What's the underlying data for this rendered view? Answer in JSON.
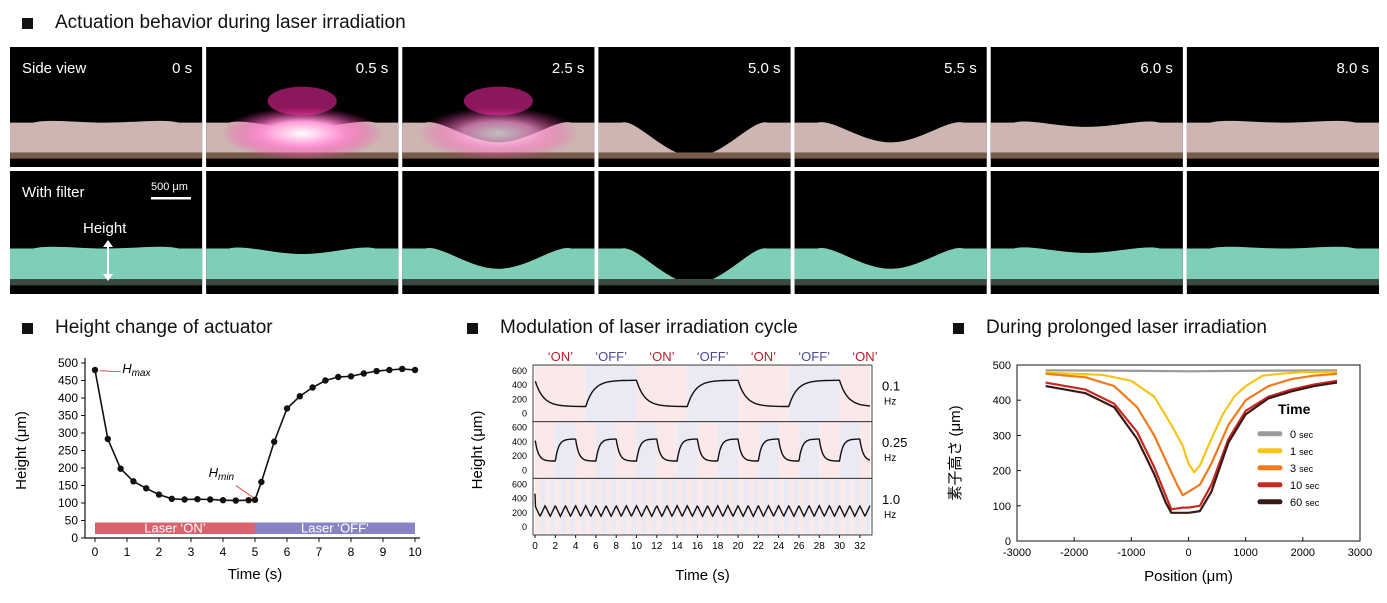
{
  "sections": {
    "top": "Actuation behavior during laser irradiation",
    "left": "Height change of actuator",
    "middle": "Modulation of laser irradiation cycle",
    "right": "During prolonged laser irradiation"
  },
  "photo_panel": {
    "row_labels": [
      "Side view",
      "With filter"
    ],
    "times": [
      "0 s",
      "0.5 s",
      "2.5 s",
      "5.0 s",
      "5.5 s",
      "6.0 s",
      "8.0 s"
    ],
    "scale_bar": "500 μm",
    "height_label": "Height",
    "colors": {
      "side_body": "#cdb6b2",
      "filter_body": "#7fcfb8",
      "laser": "#ff2aa8",
      "background": "#000000"
    }
  },
  "chart_data": [
    {
      "type": "line",
      "xlabel": "Time (s)",
      "ylabel": "Height (μm)",
      "xlim": [
        0,
        10
      ],
      "ylim": [
        0,
        500
      ],
      "xticks": [
        "0",
        "1",
        "2",
        "3",
        "4",
        "5",
        "6",
        "7",
        "8",
        "9",
        "10"
      ],
      "yticks": [
        "0",
        "50",
        "100",
        "150",
        "200",
        "250",
        "300",
        "350",
        "400",
        "450",
        "500"
      ],
      "x": [
        0,
        0.4,
        0.8,
        1.2,
        1.6,
        2.0,
        2.4,
        2.8,
        3.2,
        3.6,
        4.0,
        4.4,
        4.8,
        5.0,
        5.2,
        5.6,
        6.0,
        6.4,
        6.8,
        7.2,
        7.6,
        8.0,
        8.4,
        8.8,
        9.2,
        9.6,
        10.0
      ],
      "y": [
        480,
        283,
        198,
        162,
        142,
        124,
        112,
        110,
        111,
        110,
        108,
        107,
        108,
        109,
        160,
        275,
        370,
        405,
        430,
        450,
        460,
        462,
        470,
        477,
        480,
        483,
        480
      ],
      "annotations": {
        "hmax": "H",
        "hmax_sub": "max",
        "hmin": "H",
        "hmin_sub": "min"
      },
      "bands": [
        {
          "label": "Laser ‘ON’",
          "from": 0,
          "to": 5,
          "color": "#d9626d"
        },
        {
          "label": "Laser ‘OFF’",
          "from": 5,
          "to": 10,
          "color": "#8884c4"
        }
      ]
    },
    {
      "type": "line",
      "xlabel": "Time (s)",
      "ylabel": "Height (μm)",
      "xlim": [
        0,
        33
      ],
      "xticks": [
        "0",
        "2",
        "4",
        "6",
        "8",
        "10",
        "12",
        "14",
        "16",
        "18",
        "20",
        "22",
        "24",
        "26",
        "28",
        "30",
        "32"
      ],
      "yticks": [
        "0",
        "200",
        "400",
        "600"
      ],
      "phase_labels": [
        "‘ON’",
        "‘OFF’",
        "‘ON’",
        "‘OFF’",
        "‘ON’",
        "‘OFF’",
        "‘ON’"
      ],
      "phase_colors": {
        "on": "#b0202a",
        "off": "#4a4a9a",
        "on_bg": "#fbe9e9",
        "off_bg": "#e9eaf4"
      },
      "series": [
        {
          "freq": "0.1",
          "unit": "Hz",
          "period": 10,
          "low": 100,
          "high": 470
        },
        {
          "freq": "0.25",
          "unit": "Hz",
          "period": 4,
          "low": 130,
          "high": 440
        },
        {
          "freq": "1.0",
          "unit": "Hz",
          "period": 1,
          "low": 150,
          "high": 300
        }
      ]
    },
    {
      "type": "line",
      "xlabel": "Position (μm)",
      "ylabel": "素子高さ (μm)",
      "xlim": [
        -3000,
        3000
      ],
      "ylim": [
        0,
        500
      ],
      "xticks": [
        "-3000",
        "-2000",
        "-1000",
        "0",
        "1000",
        "2000",
        "3000"
      ],
      "yticks": [
        "0",
        "100",
        "200",
        "300",
        "400",
        "500"
      ],
      "legend_title": "Time",
      "series": [
        {
          "name": "0",
          "unit": "sec",
          "color": "#9a9a9a",
          "x": [
            -2500,
            -1500,
            -500,
            0,
            500,
            1500,
            2600
          ],
          "y": [
            485,
            484,
            483,
            482,
            483,
            484,
            485
          ]
        },
        {
          "name": "1",
          "unit": "sec",
          "color": "#f5c518",
          "x": [
            -2500,
            -1500,
            -1000,
            -600,
            -300,
            -100,
            0,
            100,
            200,
            400,
            600,
            800,
            1000,
            1300,
            1600,
            2000,
            2600
          ],
          "y": [
            478,
            472,
            455,
            410,
            330,
            270,
            220,
            195,
            215,
            290,
            360,
            410,
            440,
            470,
            475,
            480,
            480
          ]
        },
        {
          "name": "3",
          "unit": "sec",
          "color": "#f07a1c",
          "x": [
            -2500,
            -1800,
            -1300,
            -900,
            -600,
            -400,
            -200,
            -100,
            0,
            200,
            400,
            700,
            1000,
            1400,
            1800,
            2200,
            2600
          ],
          "y": [
            475,
            465,
            440,
            380,
            300,
            230,
            160,
            130,
            140,
            160,
            220,
            330,
            400,
            440,
            460,
            470,
            475
          ]
        },
        {
          "name": "10",
          "unit": "sec",
          "color": "#c8281e",
          "x": [
            -2500,
            -1800,
            -1300,
            -900,
            -600,
            -400,
            -300,
            -100,
            0,
            200,
            400,
            700,
            1000,
            1400,
            1800,
            2200,
            2600
          ],
          "y": [
            450,
            430,
            390,
            310,
            210,
            130,
            90,
            95,
            95,
            100,
            160,
            290,
            370,
            410,
            430,
            445,
            455
          ]
        },
        {
          "name": "60",
          "unit": "sec",
          "color": "#3a1a18",
          "x": [
            -2500,
            -1800,
            -1300,
            -900,
            -600,
            -400,
            -300,
            -100,
            0,
            200,
            400,
            700,
            1000,
            1400,
            1800,
            2200,
            2600
          ],
          "y": [
            440,
            420,
            380,
            290,
            190,
            110,
            80,
            80,
            80,
            85,
            140,
            280,
            360,
            405,
            425,
            440,
            450
          ]
        }
      ]
    }
  ]
}
